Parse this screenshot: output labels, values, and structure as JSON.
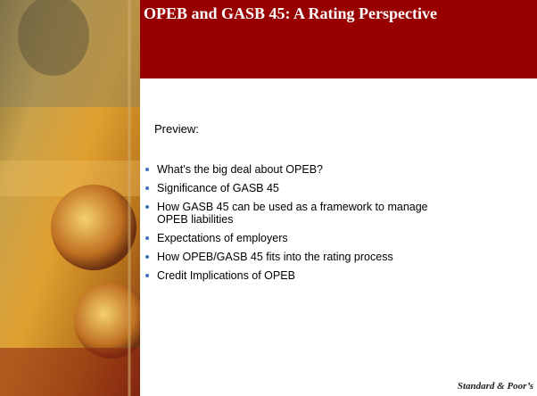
{
  "header": {
    "title": "OPEB and GASB 45: A Rating Perspective"
  },
  "body": {
    "intro": "Preview:",
    "bullets": [
      "What’s the big deal about OPEB?",
      "Significance of GASB 45",
      "How GASB 45 can be used as a framework to manage OPEB liabilities",
      "Expectations of employers",
      "How OPEB/GASB 45 fits into the rating process",
      "Credit Implications of OPEB"
    ]
  },
  "footer": {
    "logo": "Standard & Poor’s"
  }
}
